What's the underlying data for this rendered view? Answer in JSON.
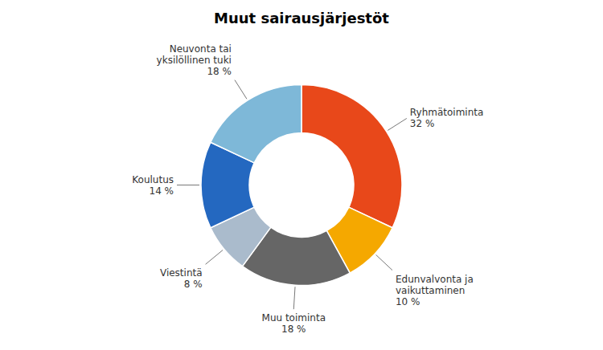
{
  "chart_data": {
    "type": "donut",
    "title": "Muut sairausjärjestöt",
    "categories": [
      "Ryhmätoiminta",
      "Edunvalvonta ja\nvaikuttaminen",
      "Muu toiminta",
      "Viestintä",
      "Koulutus",
      "Neuvonta tai\nyksilöllinen tuki"
    ],
    "values": [
      32,
      10,
      18,
      8,
      14,
      18
    ],
    "value_labels": [
      "32 %",
      "10 %",
      "18 %",
      "8 %",
      "14 %",
      "18 %"
    ],
    "colors": [
      "#E8481A",
      "#F5A800",
      "#666666",
      "#AABBCC",
      "#2468C0",
      "#7EB8D8"
    ],
    "data_labels": true
  }
}
